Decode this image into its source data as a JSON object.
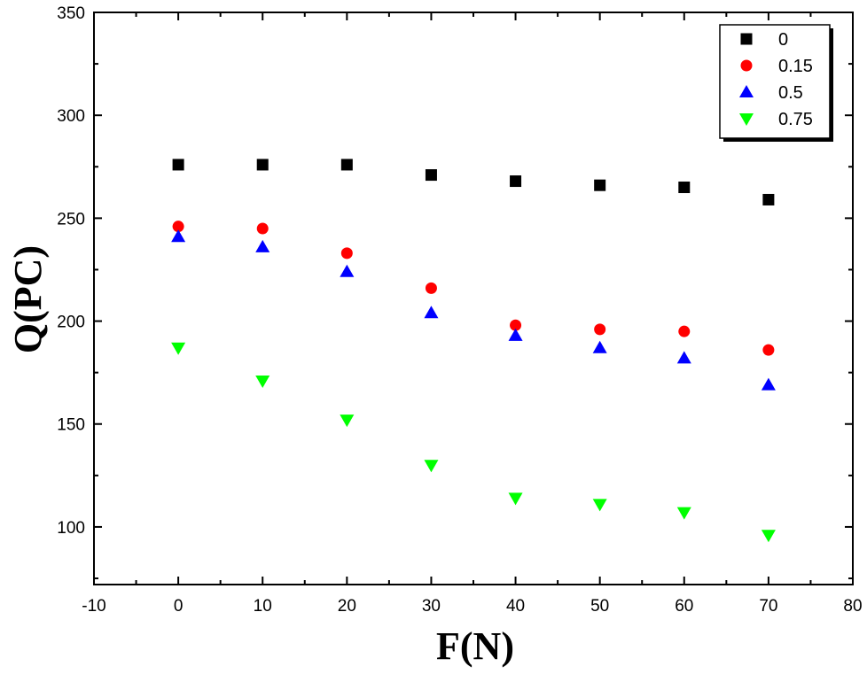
{
  "chart_data": {
    "type": "scatter",
    "title": "",
    "xlabel": "F(N)",
    "ylabel": "Q(PC)",
    "xlim": [
      -10,
      80
    ],
    "ylim": [
      72,
      350
    ],
    "xticks": [
      -10,
      0,
      10,
      20,
      30,
      40,
      50,
      60,
      70,
      80
    ],
    "yticks": [
      100,
      150,
      200,
      250,
      300,
      350
    ],
    "grid": false,
    "legend_position": "top-right",
    "x": [
      0,
      10,
      20,
      30,
      40,
      50,
      60,
      70
    ],
    "series": [
      {
        "name": "0",
        "marker": "square",
        "color": "#000000",
        "values": [
          276,
          276,
          276,
          271,
          268,
          266,
          265,
          259
        ]
      },
      {
        "name": "0.15",
        "marker": "circle",
        "color": "#ff0000",
        "values": [
          246,
          245,
          233,
          216,
          198,
          196,
          195,
          186
        ]
      },
      {
        "name": "0.5",
        "marker": "triangle-up",
        "color": "#0000ff",
        "values": [
          241,
          236,
          224,
          204,
          193,
          187,
          182,
          169
        ]
      },
      {
        "name": "0.75",
        "marker": "triangle-down",
        "color": "#00ff00",
        "values": [
          187,
          171,
          152,
          130,
          114,
          111,
          107,
          96
        ]
      }
    ]
  }
}
